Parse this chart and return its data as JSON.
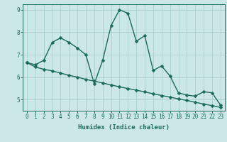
{
  "xlabel": "Humidex (Indice chaleur)",
  "ylabel": "",
  "background_color": "#cce8e6",
  "grid_color": "#aacfcc",
  "line_color": "#1a6b5a",
  "x_values": [
    0,
    1,
    2,
    3,
    4,
    5,
    6,
    7,
    8,
    9,
    10,
    11,
    12,
    13,
    14,
    15,
    16,
    17,
    18,
    19,
    20,
    21,
    22,
    23
  ],
  "y_series1": [
    6.65,
    6.55,
    6.75,
    7.55,
    7.75,
    7.55,
    7.3,
    7.0,
    5.7,
    6.75,
    8.3,
    9.0,
    8.85,
    7.6,
    7.85,
    6.3,
    6.5,
    6.05,
    5.3,
    5.2,
    5.15,
    5.35,
    5.3,
    4.75
  ],
  "y_trend": [
    6.65,
    6.45,
    6.35,
    6.28,
    6.18,
    6.08,
    6.0,
    5.9,
    5.82,
    5.74,
    5.65,
    5.57,
    5.49,
    5.42,
    5.34,
    5.26,
    5.18,
    5.11,
    5.03,
    4.96,
    4.88,
    4.8,
    4.73,
    4.65
  ],
  "xlim": [
    -0.5,
    23.5
  ],
  "ylim": [
    4.5,
    9.25
  ],
  "yticks": [
    5,
    6,
    7,
    8,
    9
  ],
  "xticks": [
    0,
    1,
    2,
    3,
    4,
    5,
    6,
    7,
    8,
    9,
    10,
    11,
    12,
    13,
    14,
    15,
    16,
    17,
    18,
    19,
    20,
    21,
    22,
    23
  ],
  "marker": "D",
  "markersize": 2.5,
  "linewidth": 1.0,
  "axis_fontsize": 6.5,
  "tick_fontsize": 5.5
}
